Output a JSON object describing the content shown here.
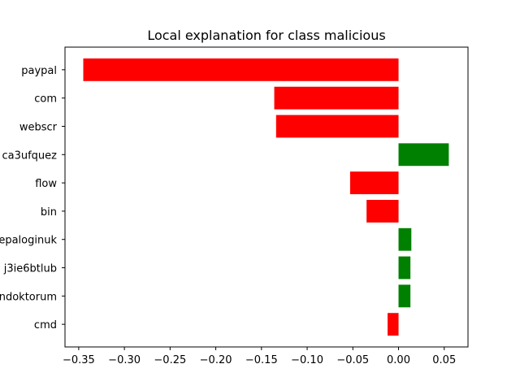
{
  "chart_data": {
    "type": "bar",
    "orientation": "horizontal",
    "title": "Local explanation for class malicious",
    "xlabel": "",
    "ylabel": "",
    "categories": [
      "paypal",
      "com",
      "webscr",
      "ca3ufquez",
      "flow",
      "bin",
      "epaloginuk",
      "j3ie6btlub",
      "ndoktorum",
      "cmd"
    ],
    "values": [
      -0.345,
      -0.136,
      -0.134,
      0.055,
      -0.053,
      -0.035,
      0.014,
      0.013,
      0.013,
      -0.012
    ],
    "xlim": [
      -0.365,
      0.076
    ],
    "xticks": [
      -0.35,
      -0.3,
      -0.25,
      -0.2,
      -0.15,
      -0.1,
      -0.05,
      0.0,
      0.05
    ],
    "xtick_labels": [
      "−0.35",
      "−0.30",
      "−0.25",
      "−0.20",
      "−0.15",
      "−0.10",
      "−0.05",
      "0.00",
      "0.05"
    ],
    "colors": {
      "positive": "#008000",
      "negative": "#ff0000"
    },
    "grid": false,
    "legend": "none"
  }
}
